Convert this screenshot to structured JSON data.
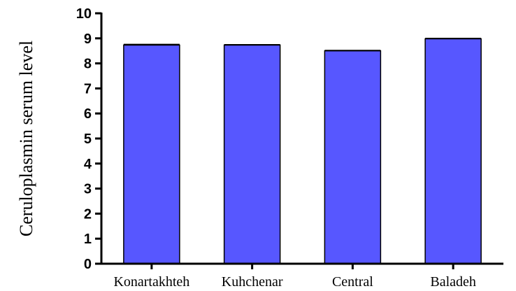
{
  "chart_data": {
    "type": "bar",
    "categories": [
      "Konartakhteh",
      "Kuhchenar",
      "Central",
      "Baladeh"
    ],
    "values": [
      8.73,
      8.73,
      8.5,
      8.98
    ],
    "errors": [
      0.03,
      0.02,
      0.02,
      0.02
    ],
    "title": "",
    "xlabel": "",
    "ylabel": "Ceruloplasmin serum level",
    "ylim": [
      0,
      10
    ],
    "yticks": [
      "0",
      "1",
      "2",
      "3",
      "4",
      "5",
      "6",
      "7",
      "8",
      "9",
      "10"
    ],
    "grid": false,
    "bar_color": "#5757FF",
    "bar_edge_color": "#000000"
  }
}
